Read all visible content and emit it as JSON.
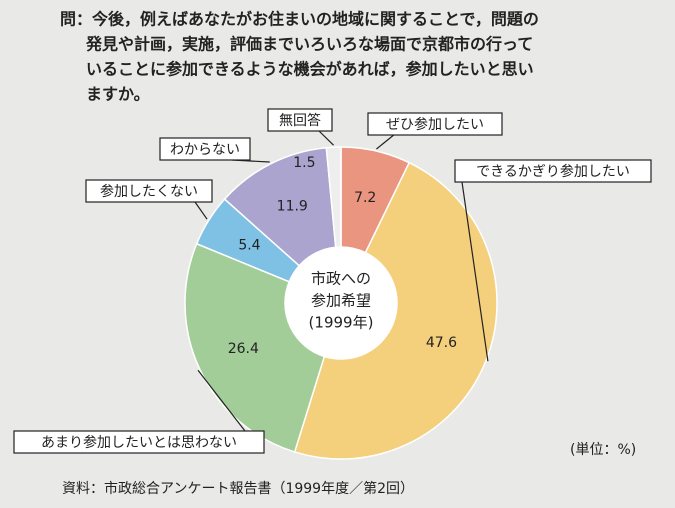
{
  "chart_data": {
    "type": "donut",
    "title_lines": [
      "問：今後，例えばあなたがお住まいの地域に関することで，問題の",
      "発見や計画，実施，評価までいろいろな場面で京都市の行って",
      "いることに参加できるような機会があれば，参加したいと思い",
      "ますか。"
    ],
    "center_label": [
      "市政への",
      "参加希望",
      "(1999年)"
    ],
    "categories": [
      "ぜひ参加したい",
      "できるかぎり参加したい",
      "あまり参加したいとは思わない",
      "参加したくない",
      "わからない",
      "無回答"
    ],
    "values": [
      7.2,
      47.6,
      26.4,
      5.4,
      11.9,
      1.5
    ],
    "colors": [
      "#e9957f",
      "#f4cf7c",
      "#a2cd99",
      "#7fc1e4",
      "#aba4cf",
      "#eeeeee"
    ],
    "unit_note": "(単位：%)",
    "source": "資料：市政総合アンケート報告書（1999年度／第2回）"
  }
}
